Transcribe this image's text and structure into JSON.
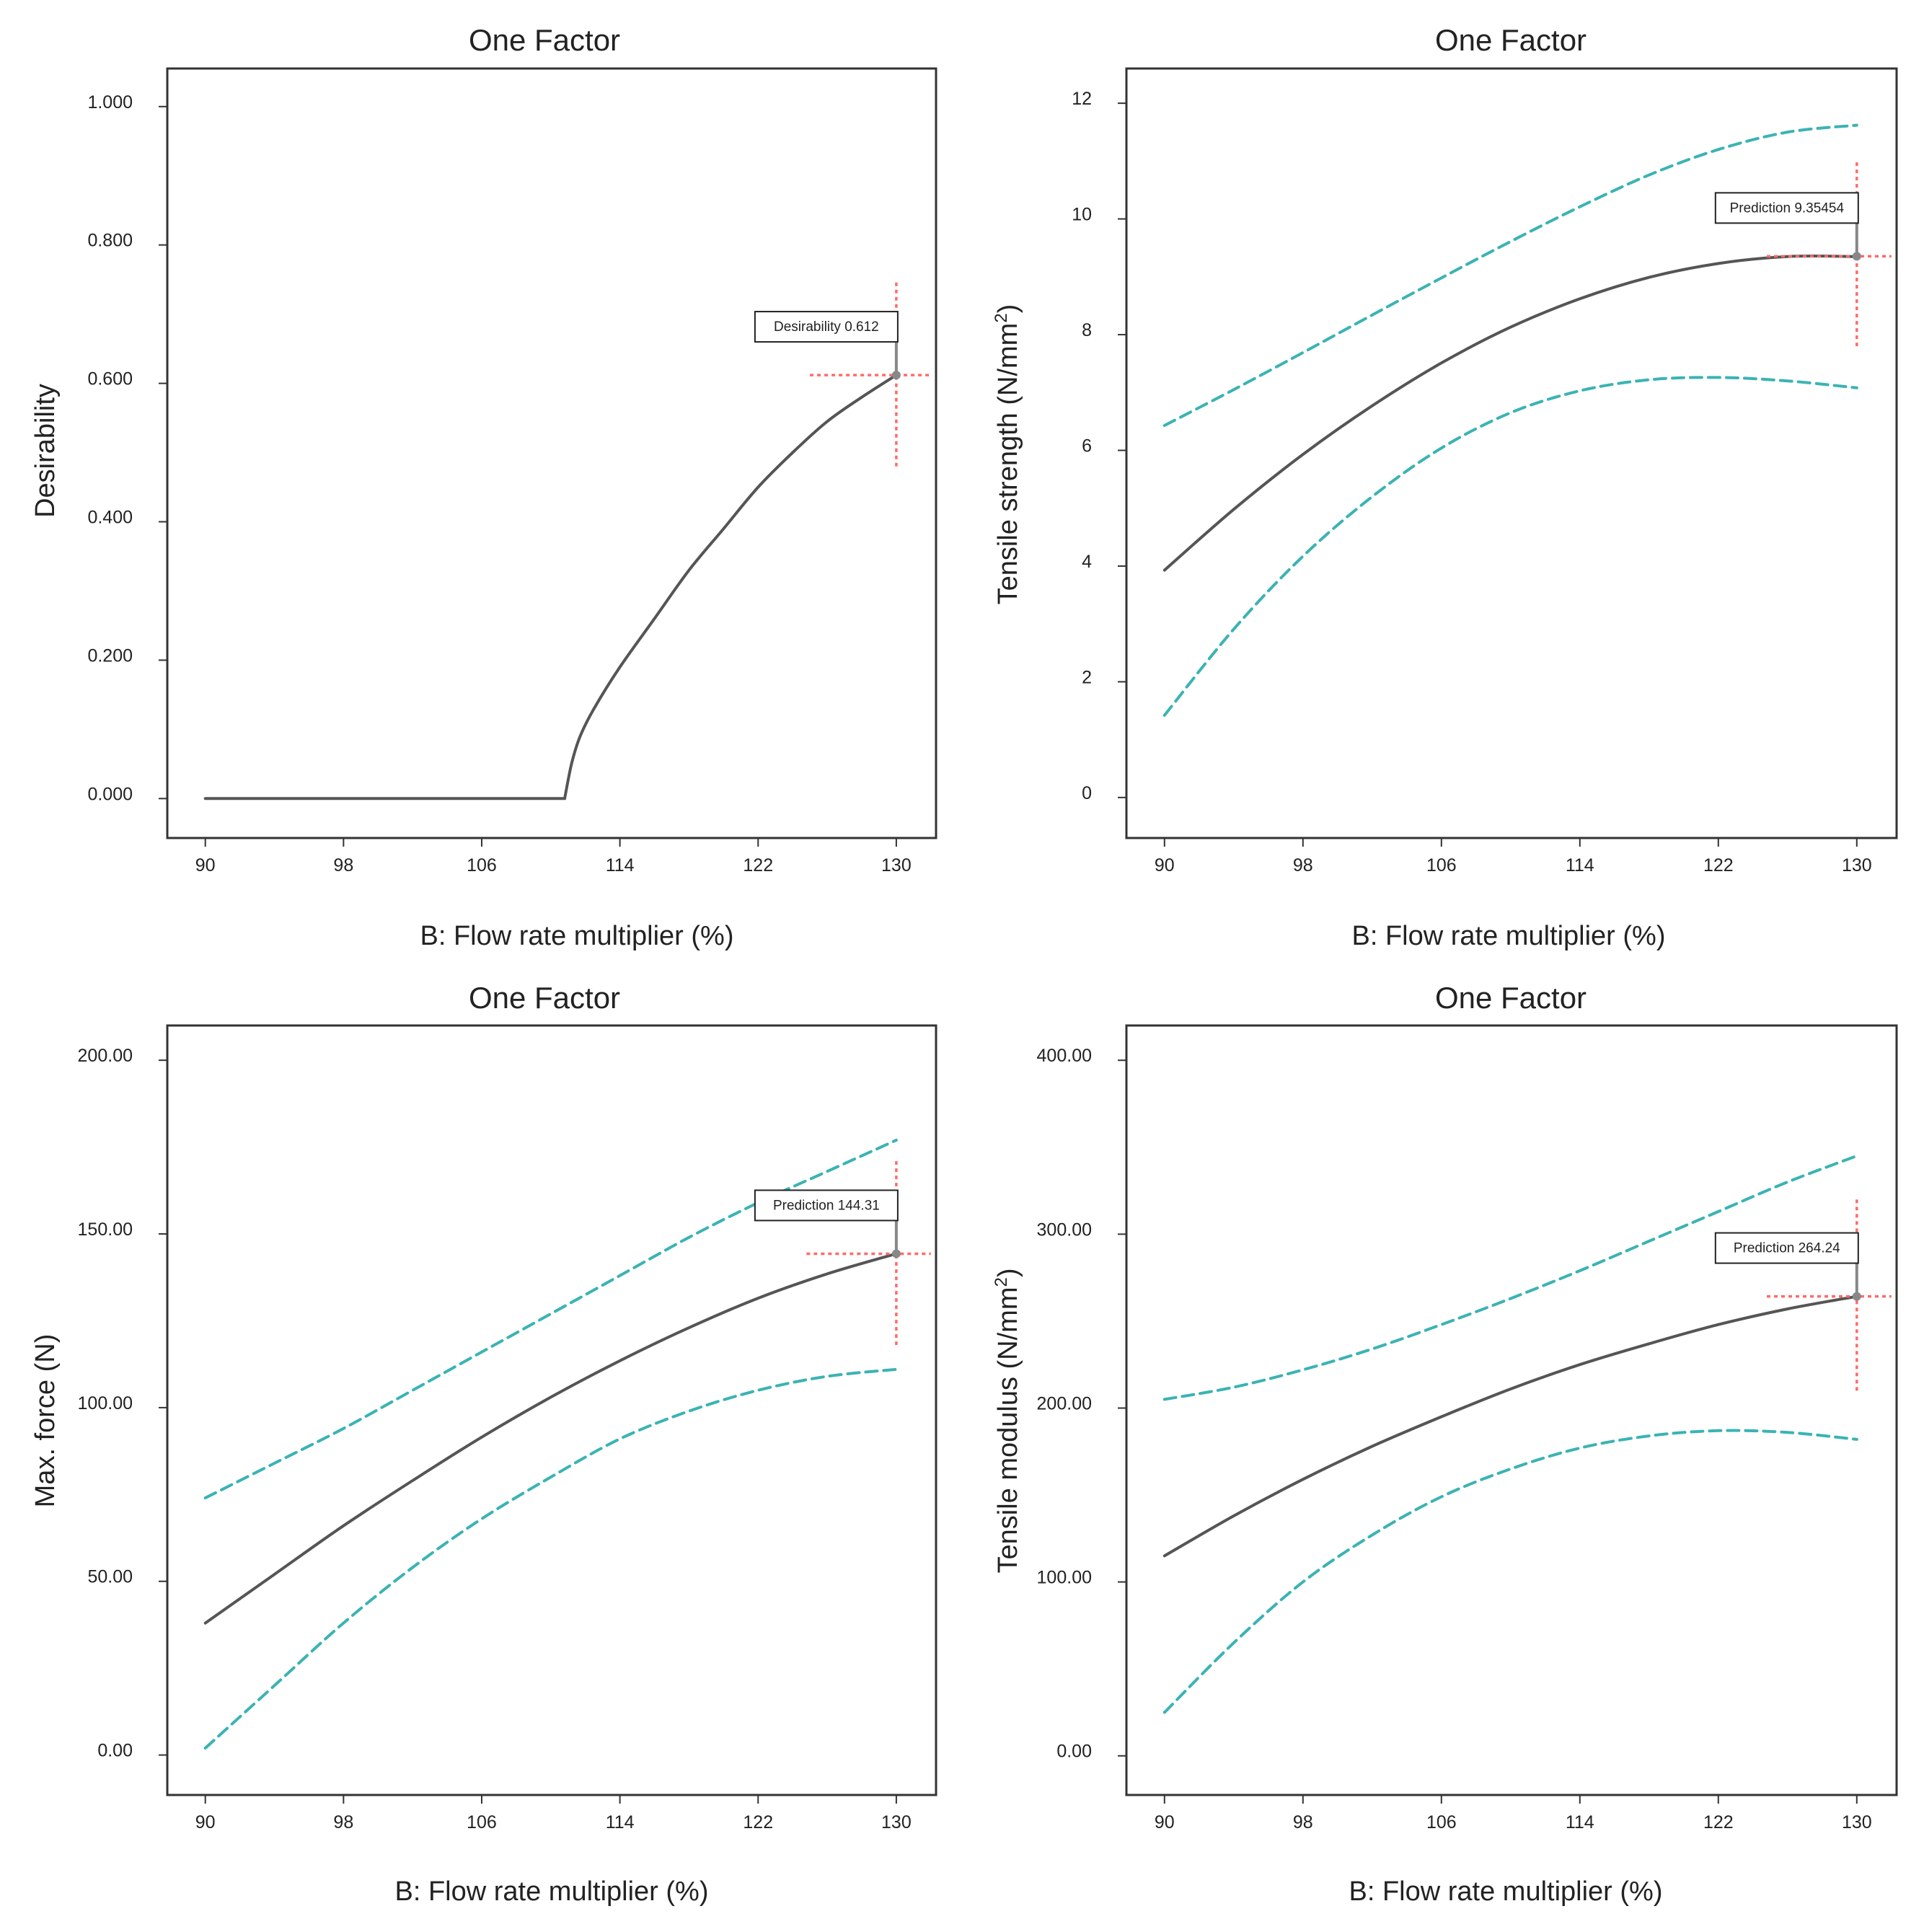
{
  "chart_data": [
    {
      "type": "line",
      "title": "One Factor",
      "xlabel": "B: Flow rate multiplier (%)",
      "ylabel": "Desirability",
      "ylabel_superscript": "",
      "xlim": [
        87.8,
        132.3
      ],
      "ylim": [
        -0.057,
        1.055
      ],
      "xticks": [
        90,
        98,
        106,
        114,
        122,
        130
      ],
      "xtick_labels": [
        "90",
        "98",
        "106",
        "114",
        "122",
        "130"
      ],
      "yticks": [
        0,
        0.2,
        0.4,
        0.6,
        0.8,
        1.0
      ],
      "ytick_labels": [
        "0.000",
        "0.200",
        "0.400",
        "0.600",
        "0.800",
        "1.000"
      ],
      "x": [
        90,
        110.8,
        111.2,
        111.7,
        112.5,
        114,
        116,
        118,
        120,
        122,
        124,
        126,
        128,
        130
      ],
      "series": [
        {
          "name": "Desirability",
          "role": "prediction",
          "values": [
            0,
            0,
            0.05,
            0.09,
            0.13,
            0.19,
            0.26,
            0.33,
            0.39,
            0.45,
            0.5,
            0.545,
            0.58,
            0.612
          ]
        }
      ],
      "marker": {
        "x": 130,
        "y": 0.612,
        "label": "Desirability 0.612",
        "vspan": [
          0.48,
          0.75
        ],
        "hspan": [
          125,
          132
        ]
      }
    },
    {
      "type": "line",
      "title": "One Factor",
      "xlabel": "B: Flow rate multiplier (%)",
      "ylabel": "Tensile strength (N/mm",
      "ylabel_superscript": "2",
      "ylabel_suffix": ")",
      "xlim": [
        87.8,
        132.3
      ],
      "ylim": [
        -0.7,
        12.6
      ],
      "xticks": [
        90,
        98,
        106,
        114,
        122,
        130
      ],
      "xtick_labels": [
        "90",
        "98",
        "106",
        "114",
        "122",
        "130"
      ],
      "yticks": [
        0,
        2,
        4,
        6,
        8,
        10,
        12
      ],
      "ytick_labels": [
        "0",
        "2",
        "4",
        "6",
        "8",
        "10",
        "12"
      ],
      "x": [
        90,
        94,
        98,
        102,
        106,
        110,
        114,
        118,
        122,
        126,
        130
      ],
      "series": [
        {
          "name": "Prediction",
          "role": "prediction",
          "values": [
            3.93,
            4.98,
            5.93,
            6.77,
            7.51,
            8.13,
            8.62,
            8.99,
            9.23,
            9.35,
            9.35
          ]
        },
        {
          "name": "95% CI high",
          "role": "ci",
          "values": [
            6.43,
            7.05,
            7.69,
            8.34,
            8.98,
            9.61,
            10.21,
            10.76,
            11.2,
            11.5,
            11.62
          ]
        },
        {
          "name": "95% CI low",
          "role": "ci",
          "values": [
            1.42,
            2.91,
            4.17,
            5.2,
            6.04,
            6.65,
            7.03,
            7.22,
            7.26,
            7.2,
            7.08
          ]
        }
      ],
      "marker": {
        "x": 130,
        "y": 9.35454,
        "label": "Prediction 9.35454",
        "vspan": [
          7.8,
          11.0
        ],
        "hspan": [
          124.8,
          132
        ]
      }
    },
    {
      "type": "line",
      "title": "One Factor",
      "xlabel": "B: Flow rate multiplier (%)",
      "ylabel": "Max. force (N)",
      "ylabel_superscript": "",
      "xlim": [
        87.8,
        132.3
      ],
      "ylim": [
        -11.5,
        210
      ],
      "xticks": [
        90,
        98,
        106,
        114,
        122,
        130
      ],
      "xtick_labels": [
        "90",
        "98",
        "106",
        "114",
        "122",
        "130"
      ],
      "yticks": [
        0,
        50,
        100,
        150,
        200
      ],
      "ytick_labels": [
        "0.00",
        "50.00",
        "100.00",
        "150.00",
        "200.00"
      ],
      "x": [
        90,
        94,
        98,
        102,
        106,
        110,
        114,
        118,
        122,
        126,
        130
      ],
      "series": [
        {
          "name": "Prediction",
          "role": "prediction",
          "values": [
            38,
            52,
            66,
            79,
            91.5,
            103,
            113.5,
            123,
            131.5,
            138.5,
            144.31
          ]
        },
        {
          "name": "95% CI high",
          "role": "ci",
          "values": [
            74,
            84,
            94,
            105,
            116,
            127,
            138,
            149,
            159,
            168,
            177
          ]
        },
        {
          "name": "95% CI low",
          "role": "ci",
          "values": [
            2,
            20,
            38,
            54,
            68,
            80,
            91,
            99,
            105,
            109,
            111
          ]
        }
      ],
      "marker": {
        "x": 130,
        "y": 144.31,
        "label": "Prediction 144.31",
        "vspan": [
          118,
          172
        ],
        "hspan": [
          124.8,
          132
        ]
      }
    },
    {
      "type": "line",
      "title": "One Factor",
      "xlabel": "B: Flow rate multiplier (%)",
      "ylabel": "Tensile modulus (N/mm",
      "ylabel_superscript": "2",
      "ylabel_suffix": ")",
      "xlim": [
        87.8,
        132.3
      ],
      "ylim": [
        -22.5,
        420
      ],
      "xticks": [
        90,
        98,
        106,
        114,
        122,
        130
      ],
      "xtick_labels": [
        "90",
        "98",
        "106",
        "114",
        "122",
        "130"
      ],
      "yticks": [
        0,
        100,
        200,
        300,
        400
      ],
      "ytick_labels": [
        "0.00",
        "100.00",
        "200.00",
        "300.00",
        "400.00"
      ],
      "x": [
        90,
        94,
        98,
        102,
        106,
        110,
        114,
        118,
        122,
        126,
        130
      ],
      "series": [
        {
          "name": "Prediction",
          "role": "prediction",
          "values": [
            115,
            138,
            159,
            178,
            195,
            211,
            225,
            237,
            248,
            257,
            264.24
          ]
        },
        {
          "name": "95% CI high",
          "role": "ci",
          "values": [
            205,
            212,
            222,
            234,
            248,
            263,
            279,
            296,
            313,
            330,
            345
          ]
        },
        {
          "name": "95% CI low",
          "role": "ci",
          "values": [
            25,
            65,
            100,
            127,
            149,
            165,
            177,
            184,
            187,
            186,
            182
          ]
        }
      ],
      "marker": {
        "x": 130,
        "y": 264.24,
        "label": "Prediction 264.24",
        "vspan": [
          210,
          320
        ],
        "hspan": [
          124.8,
          132
        ]
      }
    }
  ],
  "colors": {
    "prediction_line": "#555555",
    "ci_line": "#3bb3b3",
    "marker_cross": "#ff6a6a",
    "frame": "#333333",
    "marker_point": "#888888"
  }
}
